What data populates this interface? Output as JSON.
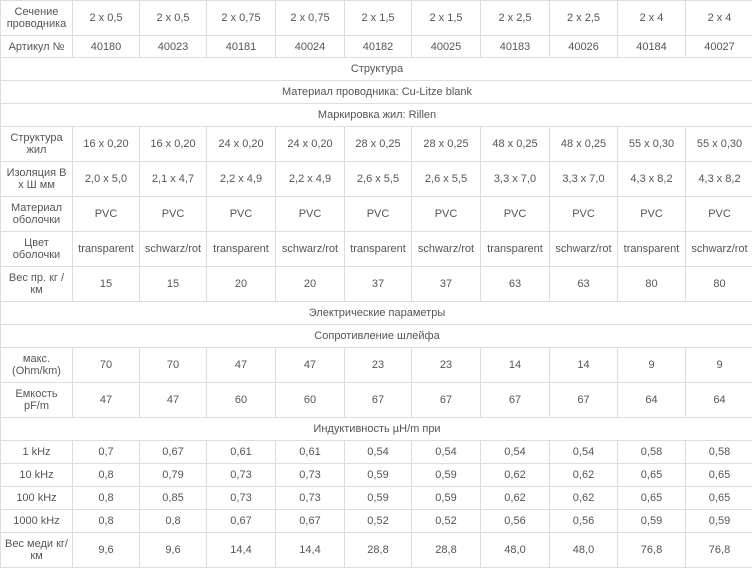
{
  "columns_count": 10,
  "rows": [
    {
      "type": "row",
      "label": "Сечение проводника",
      "values": [
        "2 x 0,5",
        "2 x 0,5",
        "2 x 0,75",
        "2 x 0,75",
        "2 x 1,5",
        "2 x 1,5",
        "2 x 2,5",
        "2 x 2,5",
        "2 x 4",
        "2 x 4"
      ]
    },
    {
      "type": "row",
      "label": "Артикул №",
      "values": [
        "40180",
        "40023",
        "40181",
        "40024",
        "40182",
        "40025",
        "40183",
        "40026",
        "40184",
        "40027"
      ]
    },
    {
      "type": "section",
      "label": "Структура"
    },
    {
      "type": "section",
      "label": "Материал проводника: Cu-Litze blank"
    },
    {
      "type": "section",
      "label": "Маркировка жил: Rillen"
    },
    {
      "type": "row",
      "label": "Структура жил",
      "values": [
        "16 x 0,20",
        "16 x 0,20",
        "24 x 0,20",
        "24 x 0,20",
        "28 x 0,25",
        "28 x 0,25",
        "48 x 0,25",
        "48 x 0,25",
        "55 x 0,30",
        "55 x 0,30"
      ]
    },
    {
      "type": "row",
      "label": "Изоляция В x Ш мм",
      "values": [
        "2,0 x 5,0",
        "2,1 x 4,7",
        "2,2 x 4,9",
        "2,2 x 4,9",
        "2,6 x 5,5",
        "2,6 x 5,5",
        "3,3 x 7,0",
        "3,3 x 7,0",
        "4,3 x 8,2",
        "4,3 x 8,2"
      ]
    },
    {
      "type": "row",
      "label": "Материал оболочки",
      "values": [
        "PVC",
        "PVC",
        "PVC",
        "PVC",
        "PVC",
        "PVC",
        "PVC",
        "PVC",
        "PVC",
        "PVC"
      ]
    },
    {
      "type": "row",
      "label": "Цвет оболочки",
      "values": [
        "transparent",
        "schwarz/rot",
        "transparent",
        "schwarz/rot",
        "transparent",
        "schwarz/rot",
        "transparent",
        "schwarz/rot",
        "transparent",
        "schwarz/rot"
      ]
    },
    {
      "type": "row",
      "label": "Вес пр. кг / км",
      "values": [
        "15",
        "15",
        "20",
        "20",
        "37",
        "37",
        "63",
        "63",
        "80",
        "80"
      ]
    },
    {
      "type": "section",
      "label": "Электрические параметры"
    },
    {
      "type": "section",
      "label": "Сопротивление шлейфа"
    },
    {
      "type": "row",
      "label": "макс. (Ohm/km)",
      "values": [
        "70",
        "70",
        "47",
        "47",
        "23",
        "23",
        "14",
        "14",
        "9",
        "9"
      ]
    },
    {
      "type": "row",
      "label": "Емкость pF/m",
      "values": [
        "47",
        "47",
        "60",
        "60",
        "67",
        "67",
        "67",
        "67",
        "64",
        "64"
      ]
    },
    {
      "type": "section",
      "label": "Индуктивность µH/m при"
    },
    {
      "type": "row",
      "label": "1 kHz",
      "values": [
        "0,7",
        "0,67",
        "0,61",
        "0,61",
        "0,54",
        "0,54",
        "0,54",
        "0,54",
        "0,58",
        "0,58"
      ]
    },
    {
      "type": "row",
      "label": "10 kHz",
      "values": [
        "0,8",
        "0,79",
        "0,73",
        "0,73",
        "0,59",
        "0,59",
        "0,62",
        "0,62",
        "0,65",
        "0,65"
      ]
    },
    {
      "type": "row",
      "label": "100 kHz",
      "values": [
        "0,8",
        "0,85",
        "0,73",
        "0,73",
        "0,59",
        "0,59",
        "0,62",
        "0,62",
        "0,65",
        "0,65"
      ]
    },
    {
      "type": "row",
      "label": "1000 kHz",
      "values": [
        "0,8",
        "0,8",
        "0,67",
        "0,67",
        "0,52",
        "0,52",
        "0,56",
        "0,56",
        "0,59",
        "0,59"
      ]
    },
    {
      "type": "row",
      "label": "Вес меди кг/км",
      "values": [
        "9,6",
        "9,6",
        "14,4",
        "14,4",
        "28,8",
        "28,8",
        "48,0",
        "48,0",
        "76,8",
        "76,8"
      ]
    }
  ]
}
